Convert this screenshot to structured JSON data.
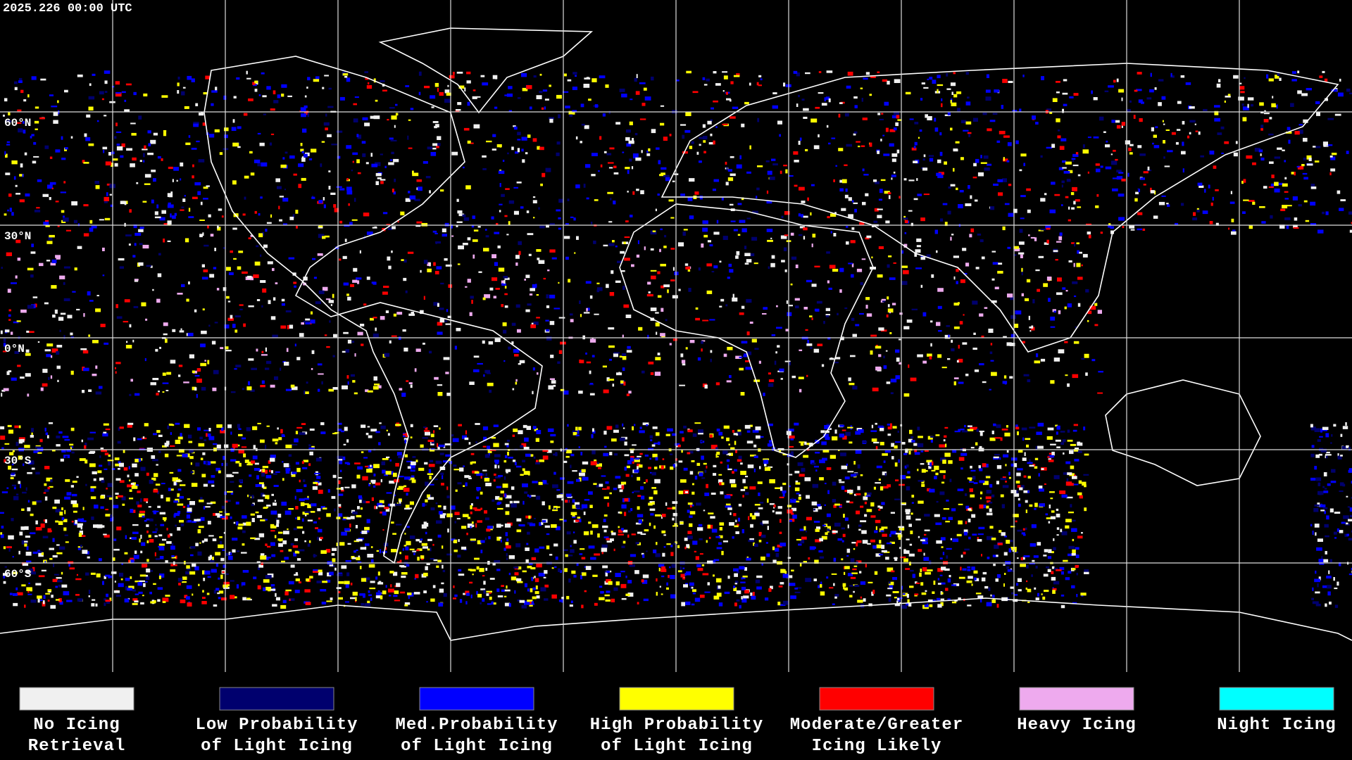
{
  "timestamp": "2025.226 00:00 UTC",
  "latitude_labels": [
    "60°N",
    "30°N",
    "0°N",
    "30°S",
    "60°S"
  ],
  "legend": [
    {
      "label_line1": "No Icing",
      "label_line2": "Retrieval",
      "color": "#f0f0f0"
    },
    {
      "label_line1": "Low Probability",
      "label_line2": "of Light Icing",
      "color": "#00006e"
    },
    {
      "label_line1": "Med.Probability",
      "label_line2": "of Light Icing",
      "color": "#0000ff"
    },
    {
      "label_line1": "High Probability",
      "label_line2": "of Light Icing",
      "color": "#ffff00"
    },
    {
      "label_line1": "Moderate/Greater",
      "label_line2": "Icing Likely",
      "color": "#ff0000"
    },
    {
      "label_line1": "Heavy Icing",
      "label_line2": "",
      "color": "#eeaaee"
    },
    {
      "label_line1": "Night Icing",
      "label_line2": "",
      "color": "#00ffff"
    }
  ]
}
